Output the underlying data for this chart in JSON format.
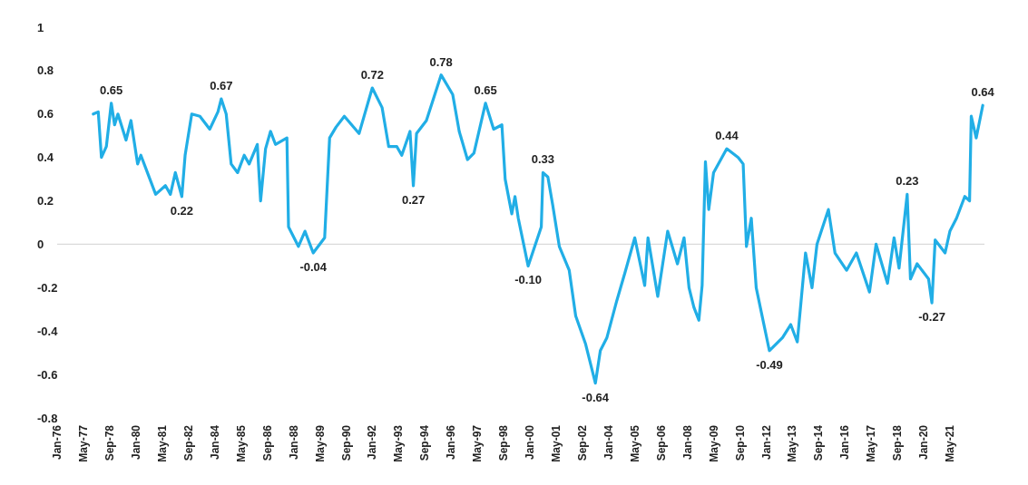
{
  "chart_data": {
    "type": "line",
    "x": [
      "1977-11",
      "1978-02",
      "1978-04",
      "1978-07",
      "1978-10",
      "1978-12",
      "1979-02",
      "1979-07",
      "1979-10",
      "1980-02",
      "1980-04",
      "1980-08",
      "1981-01",
      "1981-07",
      "1981-10",
      "1982-01",
      "1982-05",
      "1982-07",
      "1982-11",
      "1983-04",
      "1983-10",
      "1984-03",
      "1984-05",
      "1984-08",
      "1984-11",
      "1985-03",
      "1985-07",
      "1985-10",
      "1986-03",
      "1986-05",
      "1986-08",
      "1986-11",
      "1987-02",
      "1987-09",
      "1987-10",
      "1988-04",
      "1988-08",
      "1989-01",
      "1989-08",
      "1989-11",
      "1990-03",
      "1990-08",
      "1991-05",
      "1992-01",
      "1992-07",
      "1992-11",
      "1993-04",
      "1993-07",
      "1993-12",
      "1994-02",
      "1994-04",
      "1994-10",
      "1995-07",
      "1996-02",
      "1996-06",
      "1996-11",
      "1997-03",
      "1997-10",
      "1998-03",
      "1998-08",
      "1998-10",
      "1999-02",
      "1999-04",
      "1999-06",
      "1999-12",
      "2000-08",
      "2000-09",
      "2000-12",
      "2001-03",
      "2001-07",
      "2002-01",
      "2002-05",
      "2002-11",
      "2003-05",
      "2003-08",
      "2003-12",
      "2004-06",
      "2004-11",
      "2005-05",
      "2005-11",
      "2006-01",
      "2006-07",
      "2007-01",
      "2007-07",
      "2007-11",
      "2008-02",
      "2008-05",
      "2008-08",
      "2008-10",
      "2008-12",
      "2009-02",
      "2009-05",
      "2010-01",
      "2010-08",
      "2010-11",
      "2011-01",
      "2011-04",
      "2011-07",
      "2011-10",
      "2012-03",
      "2012-11",
      "2013-04",
      "2013-08",
      "2014-01",
      "2014-05",
      "2014-08",
      "2015-03",
      "2015-07",
      "2016-02",
      "2016-08",
      "2017-04",
      "2017-08",
      "2018-03",
      "2018-07",
      "2018-10",
      "2019-03",
      "2019-05",
      "2019-09",
      "2020-04",
      "2020-06",
      "2020-08",
      "2021-02",
      "2021-05",
      "2021-09",
      "2022-02",
      "2022-05",
      "2022-06",
      "2022-09",
      "2023-01"
    ],
    "series": [
      {
        "color": "#21aee6",
        "values": [
          0.6,
          0.61,
          0.4,
          0.45,
          0.65,
          0.55,
          0.6,
          0.48,
          0.57,
          0.37,
          0.41,
          0.33,
          0.23,
          0.27,
          0.23,
          0.33,
          0.22,
          0.41,
          0.6,
          0.59,
          0.53,
          0.61,
          0.67,
          0.6,
          0.37,
          0.33,
          0.41,
          0.37,
          0.46,
          0.2,
          0.44,
          0.52,
          0.46,
          0.49,
          0.08,
          -0.01,
          0.06,
          -0.04,
          0.03,
          0.49,
          0.54,
          0.59,
          0.51,
          0.72,
          0.63,
          0.45,
          0.45,
          0.41,
          0.52,
          0.27,
          0.51,
          0.57,
          0.78,
          0.69,
          0.52,
          0.39,
          0.42,
          0.65,
          0.53,
          0.55,
          0.3,
          0.14,
          0.22,
          0.12,
          -0.1,
          0.08,
          0.33,
          0.31,
          0.18,
          -0.01,
          -0.12,
          -0.33,
          -0.46,
          -0.64,
          -0.49,
          -0.43,
          -0.26,
          -0.13,
          0.03,
          -0.19,
          0.03,
          -0.24,
          0.06,
          -0.09,
          0.03,
          -0.2,
          -0.29,
          -0.35,
          -0.19,
          0.38,
          0.16,
          0.33,
          0.44,
          0.4,
          0.37,
          -0.01,
          0.12,
          -0.2,
          -0.31,
          -0.49,
          -0.43,
          -0.37,
          -0.45,
          -0.04,
          -0.2,
          0.0,
          0.16,
          -0.04,
          -0.12,
          -0.04,
          -0.22,
          0.0,
          -0.18,
          0.03,
          -0.11,
          0.23,
          -0.16,
          -0.09,
          -0.16,
          -0.27,
          0.02,
          -0.04,
          0.06,
          0.12,
          0.22,
          0.2,
          0.59,
          0.49,
          0.64
        ]
      }
    ],
    "xlim": [
      "1976-01",
      "2023-02"
    ],
    "xticks": [
      {
        "value": "1976-01",
        "label": "Jan-76"
      },
      {
        "value": "1977-05",
        "label": "May-77"
      },
      {
        "value": "1978-09",
        "label": "Sep-78"
      },
      {
        "value": "1980-01",
        "label": "Jan-80"
      },
      {
        "value": "1981-05",
        "label": "May-81"
      },
      {
        "value": "1982-09",
        "label": "Sep-82"
      },
      {
        "value": "1984-01",
        "label": "Jan-84"
      },
      {
        "value": "1985-05",
        "label": "May-85"
      },
      {
        "value": "1986-09",
        "label": "Sep-86"
      },
      {
        "value": "1988-01",
        "label": "Jan-88"
      },
      {
        "value": "1989-05",
        "label": "May-89"
      },
      {
        "value": "1990-09",
        "label": "Sep-90"
      },
      {
        "value": "1992-01",
        "label": "Jan-92"
      },
      {
        "value": "1993-05",
        "label": "May-93"
      },
      {
        "value": "1994-09",
        "label": "Sep-94"
      },
      {
        "value": "1996-01",
        "label": "Jan-96"
      },
      {
        "value": "1997-05",
        "label": "May-97"
      },
      {
        "value": "1998-09",
        "label": "Sep-98"
      },
      {
        "value": "2000-01",
        "label": "Jan-00"
      },
      {
        "value": "2001-05",
        "label": "May-01"
      },
      {
        "value": "2002-09",
        "label": "Sep-02"
      },
      {
        "value": "2004-01",
        "label": "Jan-04"
      },
      {
        "value": "2005-05",
        "label": "May-05"
      },
      {
        "value": "2006-09",
        "label": "Sep-06"
      },
      {
        "value": "2008-01",
        "label": "Jan-08"
      },
      {
        "value": "2009-05",
        "label": "May-09"
      },
      {
        "value": "2010-09",
        "label": "Sep-10"
      },
      {
        "value": "2012-01",
        "label": "Jan-12"
      },
      {
        "value": "2013-05",
        "label": "May-13"
      },
      {
        "value": "2014-09",
        "label": "Sep-14"
      },
      {
        "value": "2016-01",
        "label": "Jan-16"
      },
      {
        "value": "2017-05",
        "label": "May-17"
      },
      {
        "value": "2018-09",
        "label": "Sep-18"
      },
      {
        "value": "2020-01",
        "label": "Jan-20"
      },
      {
        "value": "2021-05",
        "label": "May-21"
      }
    ],
    "ylim": [
      -0.8,
      1
    ],
    "yticks": [
      -0.8,
      -0.6,
      -0.4,
      -0.2,
      0,
      0.2,
      0.4,
      0.6,
      0.8,
      1
    ],
    "ref_lines": [
      {
        "axis": "y",
        "value": 0,
        "color": "#d9d9d9"
      }
    ],
    "annotations": [
      {
        "text": "0.65",
        "x": "1978-10",
        "y": 0.65
      },
      {
        "text": "0.22",
        "x": "1982-05",
        "y": 0.22
      },
      {
        "text": "0.67",
        "x": "1984-05",
        "y": 0.67
      },
      {
        "text": "-0.04",
        "x": "1989-01",
        "y": -0.04
      },
      {
        "text": "0.72",
        "x": "1992-01",
        "y": 0.72
      },
      {
        "text": "0.27",
        "x": "1994-02",
        "y": 0.27
      },
      {
        "text": "0.78",
        "x": "1995-07",
        "y": 0.78
      },
      {
        "text": "0.65",
        "x": "1997-10",
        "y": 0.65
      },
      {
        "text": "-0.10",
        "x": "1999-12",
        "y": -0.1
      },
      {
        "text": "0.33",
        "x": "2000-09",
        "y": 0.33
      },
      {
        "text": "-0.64",
        "x": "2003-05",
        "y": -0.64
      },
      {
        "text": "0.44",
        "x": "2010-01",
        "y": 0.44
      },
      {
        "text": "-0.49",
        "x": "2012-03",
        "y": -0.49
      },
      {
        "text": "0.23",
        "x": "2019-03",
        "y": 0.23
      },
      {
        "text": "-0.27",
        "x": "2020-06",
        "y": -0.27
      },
      {
        "text": "0.64",
        "x": "2023-01",
        "y": 0.64
      }
    ]
  }
}
